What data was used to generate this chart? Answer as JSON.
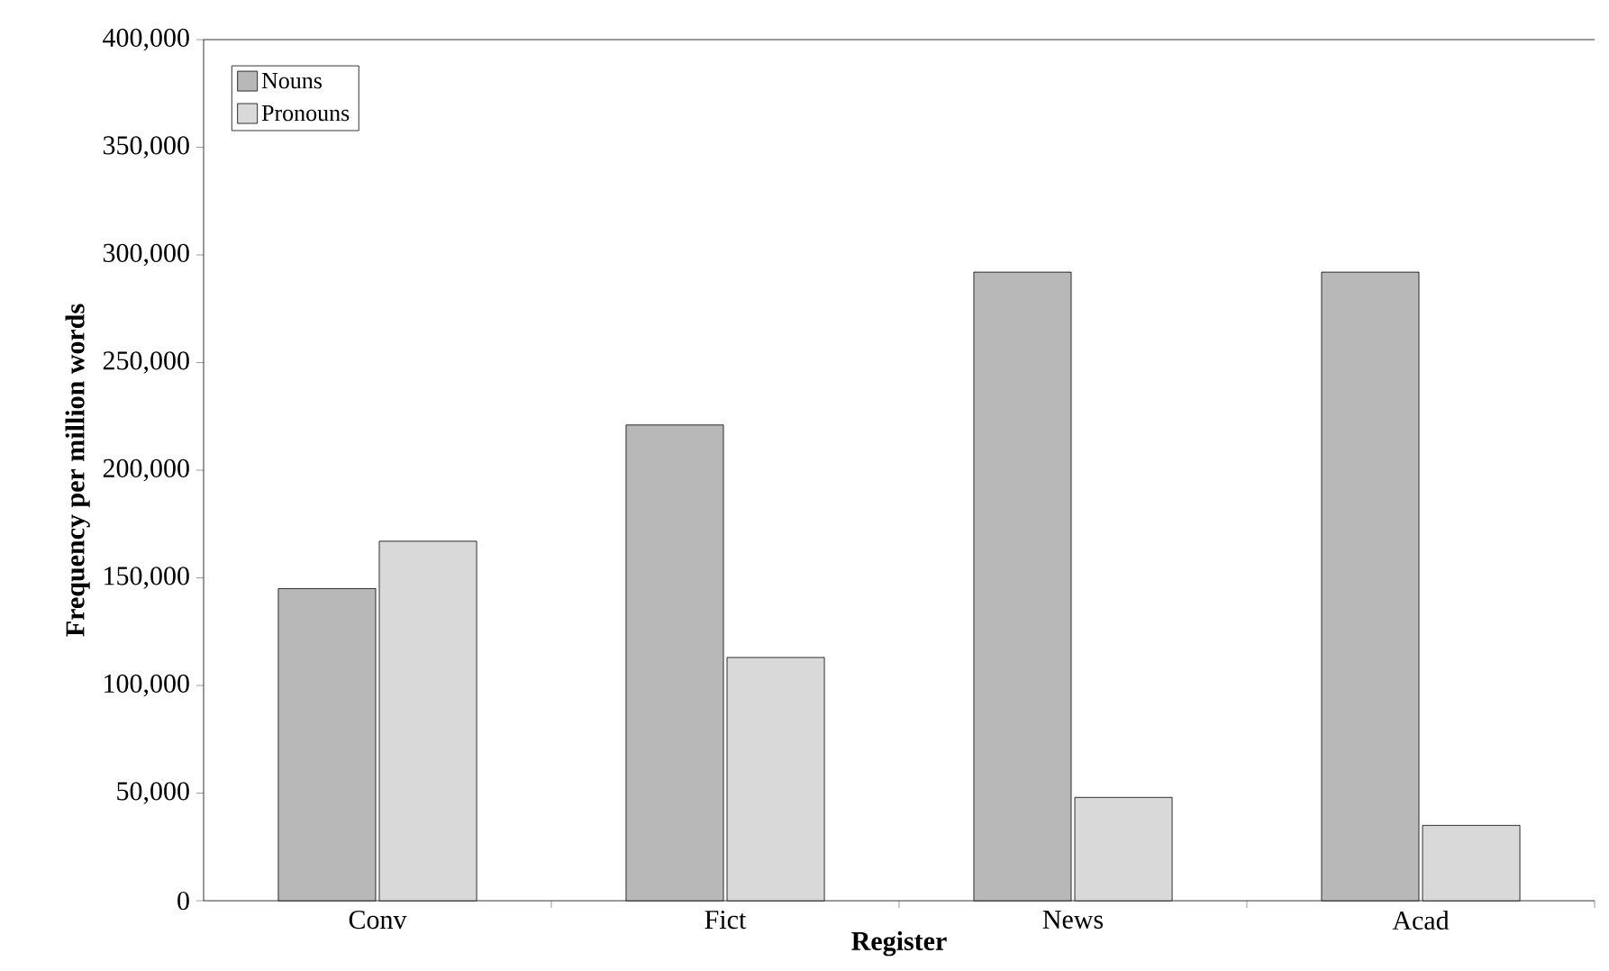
{
  "chart_data": {
    "type": "bar",
    "xlabel": "Register",
    "ylabel": "Frequency per million words",
    "categories": [
      "Conv",
      "Fict",
      "News",
      "Acad"
    ],
    "series": [
      {
        "name": "Nouns",
        "color": "#b8b8b8",
        "values": [
          145000,
          221000,
          292000,
          292000
        ]
      },
      {
        "name": "Pronouns",
        "color": "#d9d9d9",
        "values": [
          167000,
          113000,
          48000,
          35000
        ]
      }
    ],
    "ylim": [
      0,
      400000
    ],
    "yticks": [
      {
        "value": 0,
        "label": "0"
      },
      {
        "value": 50000,
        "label": "50,000"
      },
      {
        "value": 100000,
        "label": "100,000"
      },
      {
        "value": 150000,
        "label": "150,000"
      },
      {
        "value": 200000,
        "label": "200,000"
      },
      {
        "value": 250000,
        "label": "250,000"
      },
      {
        "value": 300000,
        "label": "300,000"
      },
      {
        "value": 350000,
        "label": "350,000"
      },
      {
        "value": 400000,
        "label": "400,000"
      }
    ],
    "legend": "top left",
    "grid": false
  }
}
